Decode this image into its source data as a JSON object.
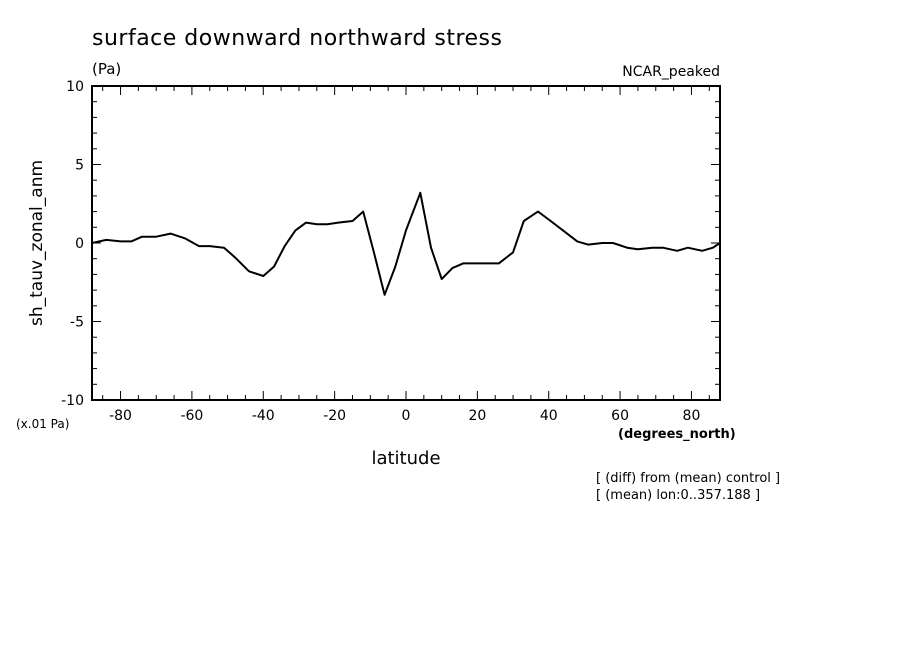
{
  "chart_data": {
    "type": "line",
    "title": "surface downward northward stress",
    "units": "(Pa)",
    "model_label": "NCAR_peaked",
    "ylabel": "sh_tauv_zonal_anm",
    "y_scale_label": "(x.01 Pa)",
    "xlabel": "latitude",
    "x_units_label": "(degrees_north)",
    "xlim": [
      -88,
      88
    ],
    "ylim": [
      -10,
      10
    ],
    "x_ticks": [
      -80,
      -60,
      -40,
      -20,
      0,
      20,
      40,
      60,
      80
    ],
    "x_tick_labels": [
      "-80",
      "-60",
      "-40",
      "-20",
      "0",
      "20",
      "40",
      "60",
      "80"
    ],
    "y_ticks": [
      -10,
      -5,
      0,
      5,
      10
    ],
    "y_tick_labels": [
      "-10",
      "-5",
      "0",
      "5",
      "10"
    ],
    "notes": [
      "[ (diff) from (mean) control ]",
      "[ (mean) lon:0..357.188 ]"
    ],
    "series": [
      {
        "x": [
          -88,
          -84,
          -80,
          -77,
          -74,
          -70,
          -66,
          -62,
          -58,
          -55,
          -51,
          -48,
          -44,
          -40,
          -37,
          -34,
          -31,
          -28,
          -25,
          -22,
          -19,
          -15,
          -12,
          -9,
          -6,
          -3,
          0,
          4,
          7,
          10,
          13,
          16,
          20,
          23,
          26,
          30,
          33,
          37,
          40,
          44,
          48,
          51,
          55,
          58,
          62,
          65,
          69,
          72,
          76,
          79,
          83,
          86,
          88
        ],
        "y": [
          0.0,
          0.2,
          0.1,
          0.1,
          0.4,
          0.4,
          0.6,
          0.3,
          -0.2,
          -0.2,
          -0.3,
          -0.9,
          -1.8,
          -2.1,
          -1.5,
          -0.2,
          0.8,
          1.3,
          1.2,
          1.2,
          1.3,
          1.4,
          2.0,
          -0.6,
          -3.3,
          -1.5,
          0.8,
          3.2,
          -0.3,
          -2.3,
          -1.6,
          -1.3,
          -1.3,
          -1.3,
          -1.3,
          -0.6,
          1.4,
          2.0,
          1.5,
          0.8,
          0.1,
          -0.1,
          0.0,
          0.0,
          -0.3,
          -0.4,
          -0.3,
          -0.3,
          -0.5,
          -0.3,
          -0.5,
          -0.3,
          0.0
        ]
      }
    ]
  }
}
